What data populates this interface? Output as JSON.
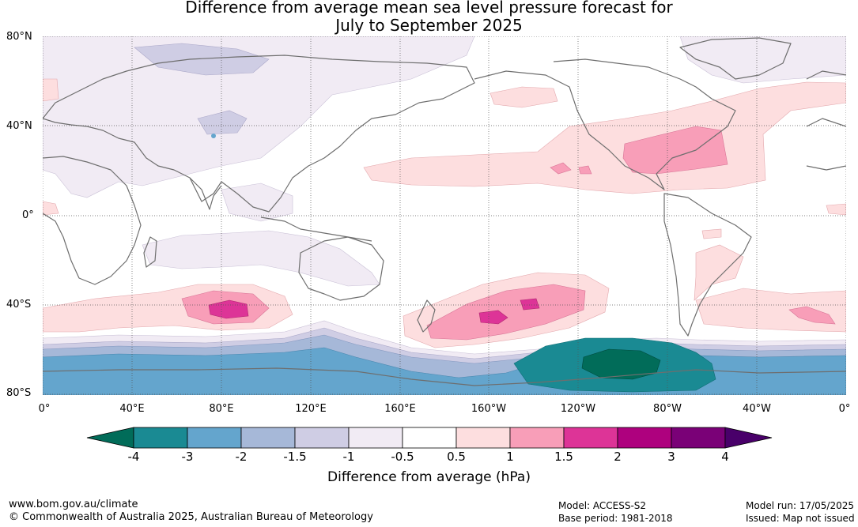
{
  "title": {
    "line1": "Difference from average mean sea level pressure forecast for",
    "line2": "July to September 2025"
  },
  "axes": {
    "latitudes": [
      "80°N",
      "40°N",
      "0°",
      "40°S",
      "80°S"
    ],
    "longitudes": [
      "0°",
      "40°E",
      "80°E",
      "120°E",
      "160°E",
      "160°W",
      "120°W",
      "80°W",
      "40°W",
      "0°"
    ]
  },
  "colorbar": {
    "ticks": [
      "-4",
      "-3",
      "-2",
      "-1.5",
      "-1",
      "-0.5",
      "0.5",
      "1",
      "1.5",
      "2",
      "3",
      "4"
    ],
    "colors": [
      "#1a8a93",
      "#64a5cd",
      "#a6b8d8",
      "#cfcde4",
      "#f1ebf4",
      "#ffffff",
      "#fddedf",
      "#f89eb8",
      "#dd3497",
      "#ae017e",
      "#7a0177"
    ],
    "low_end_color": "#016c59",
    "high_end_color": "#49006a",
    "title": "Difference from average (hPa)"
  },
  "footer": {
    "url": "www.bom.gov.au/climate",
    "copyright": "© Commonwealth of Australia 2025, Australian Bureau of Meteorology",
    "model": "Model: ACCESS-S2",
    "base_period": "Base period: 1981-2018",
    "model_run": "Model run: 17/05/2025",
    "issued": "Issued: Map not issued"
  }
}
